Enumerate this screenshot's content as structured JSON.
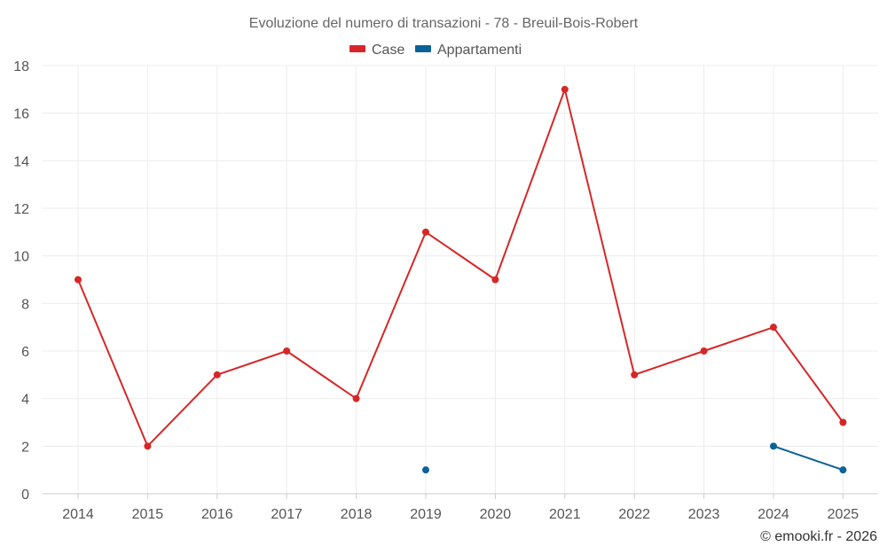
{
  "chart_data": {
    "type": "line",
    "title": "Evoluzione del numero di transazioni - 78 - Breuil-Bois-Robert",
    "xlabel": "",
    "ylabel": "",
    "categories": [
      "2014",
      "2015",
      "2016",
      "2017",
      "2018",
      "2019",
      "2020",
      "2021",
      "2022",
      "2023",
      "2024",
      "2025"
    ],
    "ylim": [
      0,
      18
    ],
    "yticks": [
      0,
      2,
      4,
      6,
      8,
      10,
      12,
      14,
      16,
      18
    ],
    "grid": true,
    "legend_position": "top-center",
    "series": [
      {
        "name": "Case",
        "color": "#d62728",
        "values": [
          9,
          2,
          5,
          6,
          4,
          11,
          9,
          17,
          5,
          6,
          7,
          3
        ]
      },
      {
        "name": "Appartamenti",
        "color": "#0b6199",
        "values": [
          null,
          null,
          null,
          null,
          null,
          1,
          null,
          null,
          null,
          null,
          2,
          1
        ]
      }
    ],
    "credit": "© emooki.fr - 2026"
  }
}
